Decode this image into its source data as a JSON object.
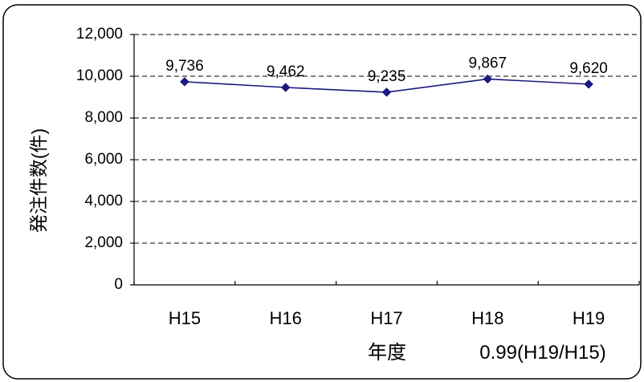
{
  "chart_data": {
    "type": "line",
    "title": "",
    "categories": [
      "H15",
      "H16",
      "H17",
      "H18",
      "H19"
    ],
    "series": [
      {
        "values": [
          9736,
          9462,
          9235,
          9867,
          9620
        ]
      }
    ],
    "data_labels": [
      "9,736",
      "9,462",
      "9,235",
      "9,867",
      "9,620"
    ],
    "ylabel": "発注件数(件)",
    "xlabel": "年度",
    "annotation": "0.99(H19/H15)",
    "ylim": [
      0,
      12000
    ],
    "yticks": [
      {
        "value": 0,
        "label": "0"
      },
      {
        "value": 2000,
        "label": "2,000"
      },
      {
        "value": 4000,
        "label": "4,000"
      },
      {
        "value": 6000,
        "label": "6,000"
      },
      {
        "value": 8000,
        "label": "8,000"
      },
      {
        "value": 10000,
        "label": "10,000"
      },
      {
        "value": 12000,
        "label": "12,000"
      }
    ],
    "grid": "horizontal-dashed",
    "legend": "none",
    "colors": {
      "line": "#1a1a80",
      "marker": "#1a1a80",
      "grid": "#000000",
      "frame": "#000000"
    }
  }
}
